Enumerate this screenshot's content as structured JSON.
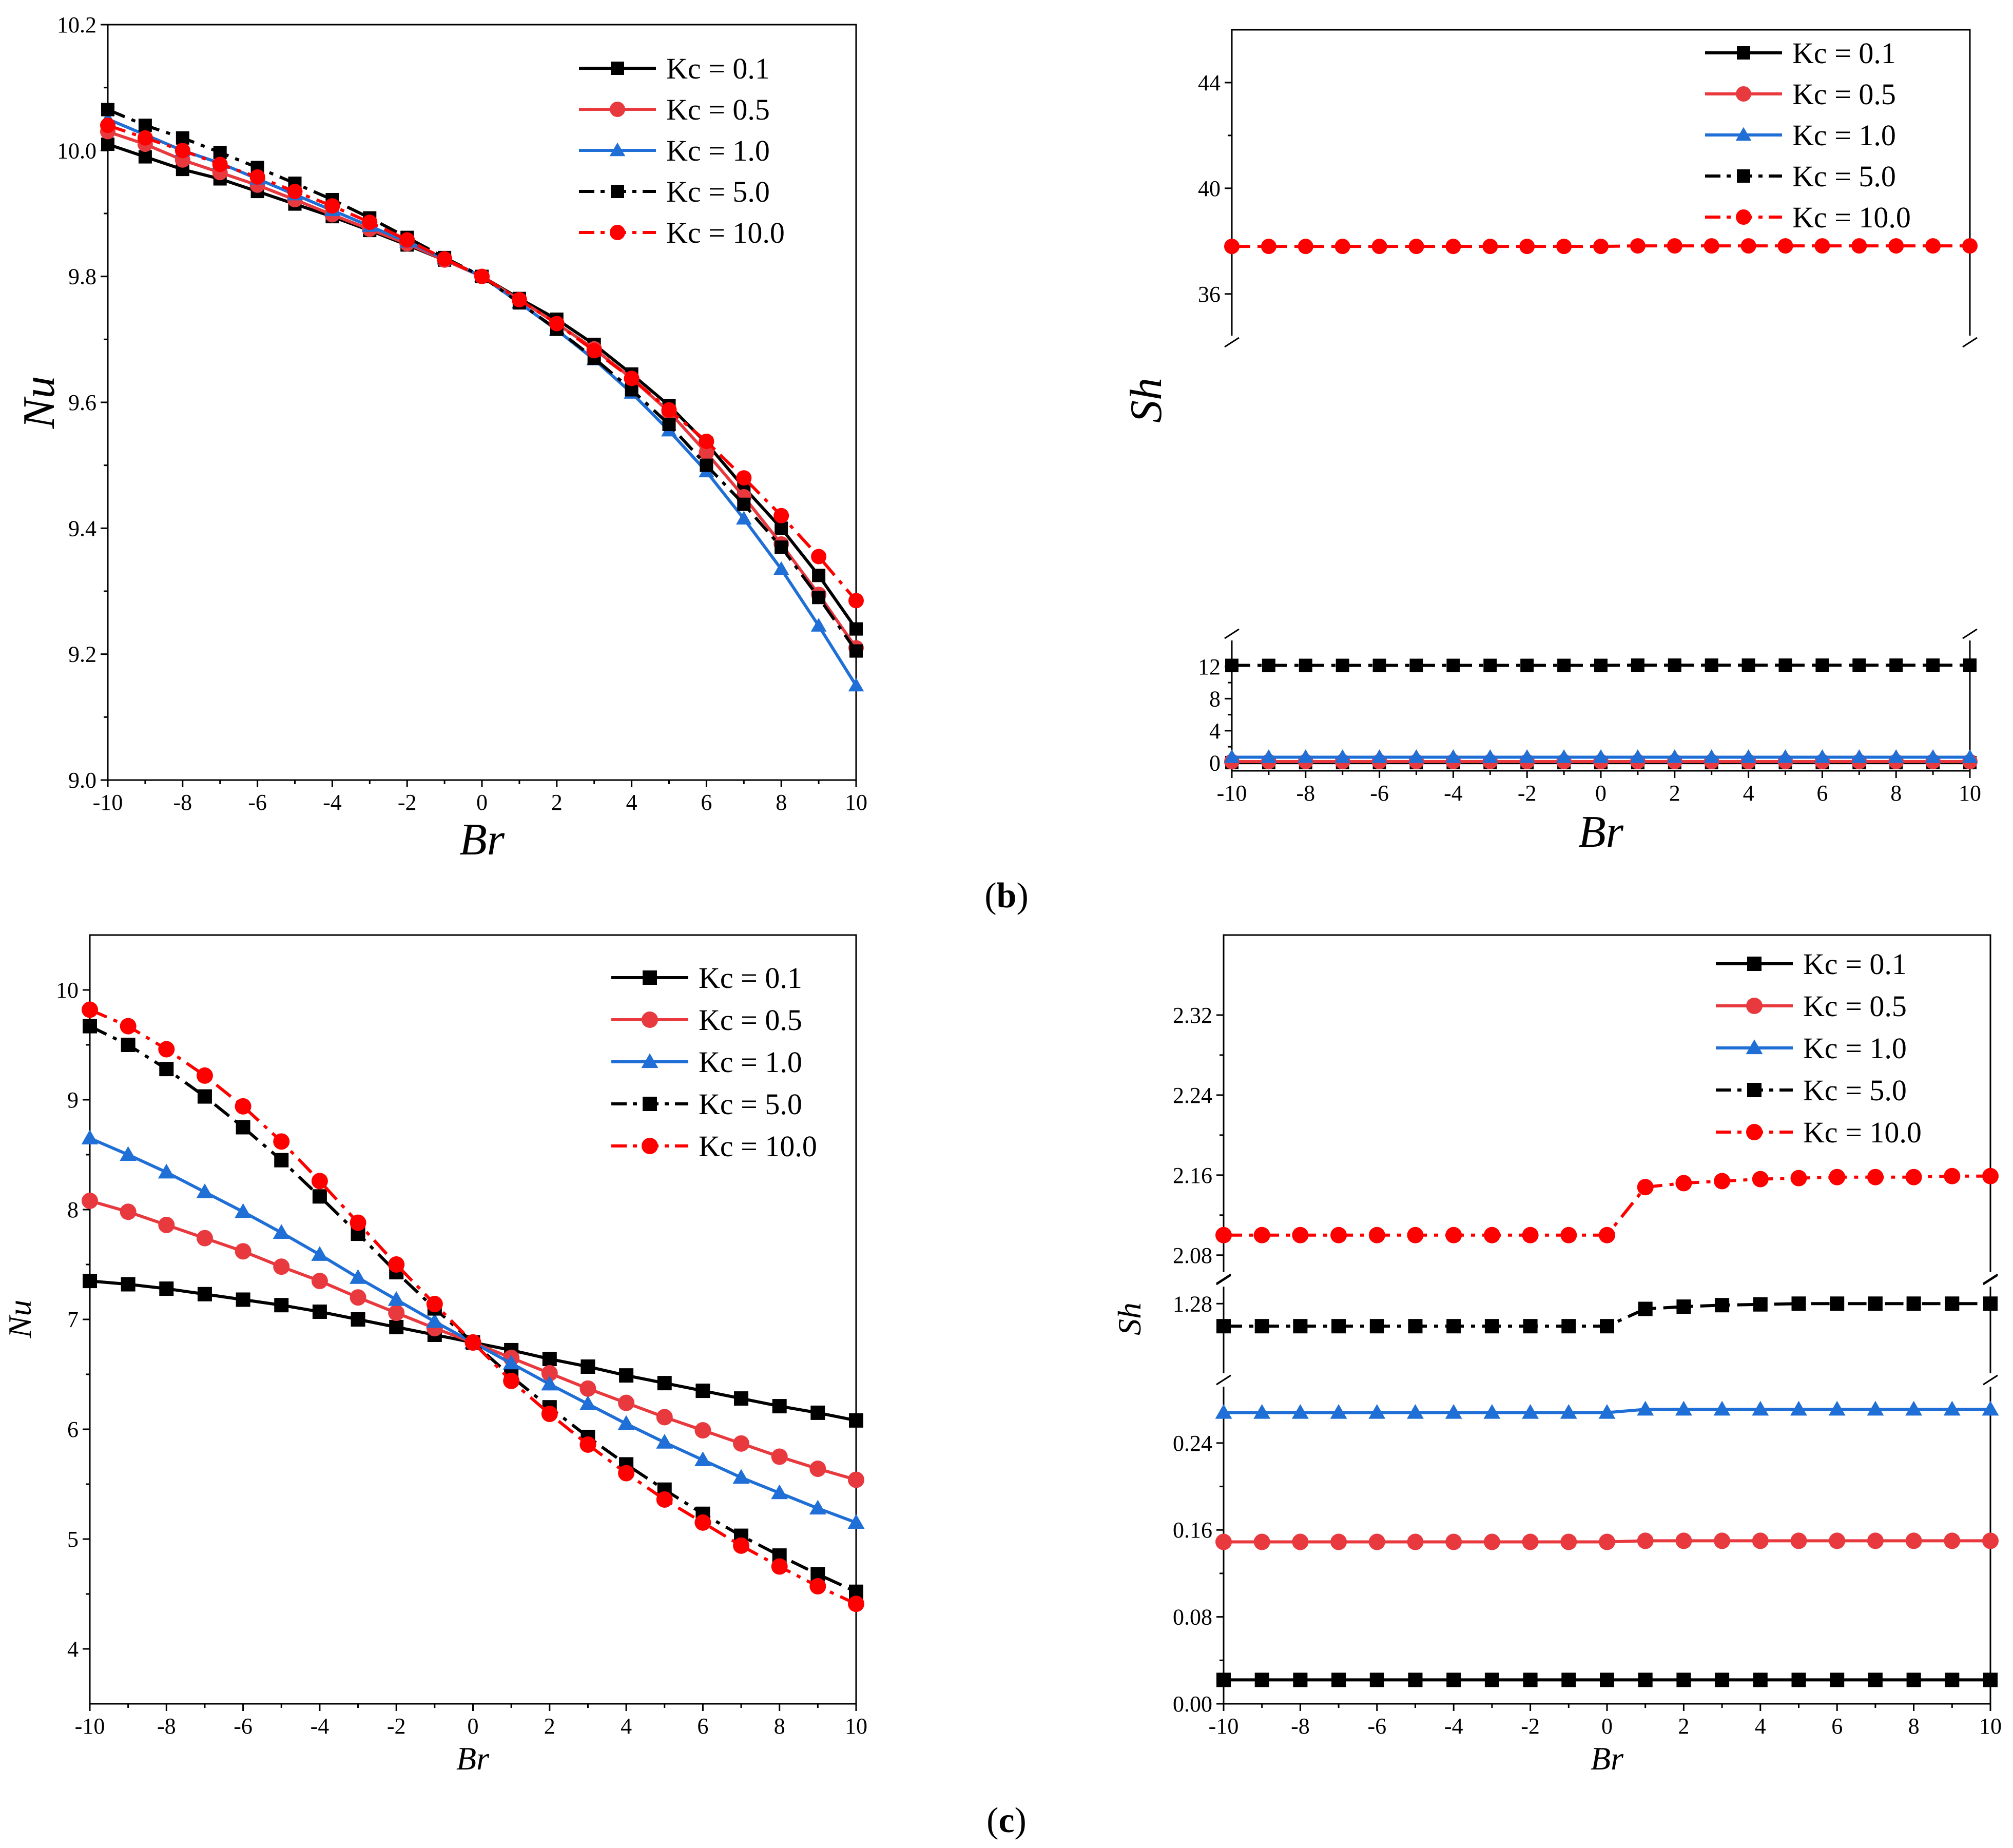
{
  "colors": {
    "black": "#000000",
    "red": "#e8393f",
    "blue": "#1f6fd6",
    "brightRed": "#ff0000"
  },
  "panel_labels": {
    "b_open": "(",
    "b": "b",
    "b_close": ")",
    "c_open": "(",
    "c": "c",
    "c_close": ")"
  },
  "chart_data": [
    {
      "id": "b-left",
      "type": "line",
      "xlabel": "Br",
      "ylabel": "Nu",
      "xlim": [
        -10,
        10
      ],
      "ylim": [
        9.0,
        10.2
      ],
      "xticks": [
        -10,
        -8,
        -6,
        -4,
        -2,
        0,
        2,
        4,
        6,
        8,
        10
      ],
      "xticklabels": [
        "-10",
        "-8",
        "-6",
        "-4",
        "-2",
        "0",
        "2",
        "4",
        "6",
        "8",
        "10"
      ],
      "yticks": [
        9.0,
        9.2,
        9.4,
        9.6,
        9.8,
        10.0,
        10.2
      ],
      "yticklabels": [
        "9.0",
        "9.2",
        "9.4",
        "9.6",
        "9.8",
        "10.0",
        "10.2"
      ],
      "legend_position": "top-right",
      "x": [
        -10,
        -9,
        -8,
        -7,
        -6,
        -5,
        -4,
        -3,
        -2,
        -1,
        0,
        1,
        2,
        3,
        4,
        5,
        6,
        7,
        8,
        9,
        10
      ],
      "series": [
        {
          "name": "Kc = 0.1",
          "color": "#000000",
          "marker": "square",
          "dash": "solid",
          "values": [
            10.01,
            9.99,
            9.97,
            9.955,
            9.935,
            9.915,
            9.895,
            9.873,
            9.85,
            9.826,
            9.8,
            9.765,
            9.732,
            9.692,
            9.645,
            9.595,
            9.535,
            9.465,
            9.4,
            9.325,
            9.24
          ]
        },
        {
          "name": "Kc = 0.5",
          "color": "#e8393f",
          "marker": "circle",
          "dash": "solid",
          "values": [
            10.03,
            10.01,
            9.985,
            9.965,
            9.945,
            9.922,
            9.898,
            9.875,
            9.852,
            9.826,
            9.8,
            9.763,
            9.725,
            9.685,
            9.638,
            9.585,
            9.52,
            9.45,
            9.375,
            9.295,
            9.21
          ]
        },
        {
          "name": "Kc = 1.0",
          "color": "#1f6fd6",
          "marker": "triangle",
          "dash": "solid",
          "values": [
            10.05,
            10.025,
            10.0,
            9.98,
            9.955,
            9.93,
            9.905,
            9.88,
            9.855,
            9.828,
            9.8,
            9.758,
            9.715,
            9.668,
            9.615,
            9.555,
            9.49,
            9.415,
            9.335,
            9.245,
            9.15
          ]
        },
        {
          "name": "Kc = 5.0",
          "color": "#000000",
          "marker": "square",
          "dash": "dashdot",
          "values": [
            10.065,
            10.04,
            10.02,
            9.997,
            9.973,
            9.948,
            9.922,
            9.893,
            9.862,
            9.83,
            9.8,
            9.758,
            9.716,
            9.67,
            9.62,
            9.565,
            9.5,
            9.438,
            9.37,
            9.29,
            9.205
          ]
        },
        {
          "name": "Kc = 10.0",
          "color": "#ff0000",
          "marker": "circle",
          "dash": "dashdot",
          "values": [
            10.04,
            10.02,
            10.0,
            9.978,
            9.958,
            9.935,
            9.912,
            9.886,
            9.858,
            9.828,
            9.8,
            9.763,
            9.725,
            9.682,
            9.638,
            9.588,
            9.538,
            9.48,
            9.42,
            9.355,
            9.285
          ]
        }
      ]
    },
    {
      "id": "b-right",
      "type": "line",
      "xlabel": "Br",
      "ylabel": "Sh",
      "xlim": [
        -10,
        10
      ],
      "axis_break": true,
      "segments": [
        {
          "ylim": [
            -1,
            15
          ],
          "yticks": [
            0,
            4,
            8,
            12
          ],
          "yticklabels": [
            "0",
            "4",
            "8",
            "12"
          ]
        },
        {
          "ylim": [
            34.5,
            46
          ],
          "yticks": [
            36,
            40,
            44
          ],
          "yticklabels": [
            "36",
            "40",
            "44"
          ]
        }
      ],
      "xticks": [
        -10,
        -8,
        -6,
        -4,
        -2,
        0,
        2,
        4,
        6,
        8,
        10
      ],
      "xticklabels": [
        "-10",
        "-8",
        "-6",
        "-4",
        "-2",
        "0",
        "2",
        "4",
        "6",
        "8",
        "10"
      ],
      "legend_position": "top-right",
      "x": [
        -10,
        -9,
        -8,
        -7,
        -6,
        -5,
        -4,
        -3,
        -2,
        -1,
        0,
        1,
        2,
        3,
        4,
        5,
        6,
        7,
        8,
        9,
        10
      ],
      "series": [
        {
          "name": "Kc = 0.1",
          "color": "#000000",
          "marker": "square",
          "dash": "solid",
          "segment": 0,
          "values": [
            0.02,
            0.02,
            0.02,
            0.02,
            0.02,
            0.02,
            0.02,
            0.02,
            0.02,
            0.02,
            0.02,
            0.02,
            0.02,
            0.02,
            0.02,
            0.02,
            0.02,
            0.02,
            0.02,
            0.02,
            0.02
          ]
        },
        {
          "name": "Kc = 0.5",
          "color": "#e8393f",
          "marker": "circle",
          "dash": "solid",
          "segment": 0,
          "values": [
            0.15,
            0.15,
            0.15,
            0.15,
            0.15,
            0.15,
            0.15,
            0.15,
            0.15,
            0.15,
            0.15,
            0.15,
            0.15,
            0.15,
            0.15,
            0.15,
            0.15,
            0.15,
            0.15,
            0.15,
            0.15
          ]
        },
        {
          "name": "Kc = 1.0",
          "color": "#1f6fd6",
          "marker": "triangle",
          "dash": "solid",
          "segment": 0,
          "values": [
            0.7,
            0.7,
            0.7,
            0.7,
            0.7,
            0.7,
            0.7,
            0.7,
            0.7,
            0.7,
            0.7,
            0.7,
            0.7,
            0.7,
            0.7,
            0.7,
            0.7,
            0.7,
            0.7,
            0.7,
            0.7
          ]
        },
        {
          "name": "Kc = 5.0",
          "color": "#000000",
          "marker": "square",
          "dash": "dashdot",
          "segment": 0,
          "values": [
            12.15,
            12.15,
            12.15,
            12.15,
            12.15,
            12.15,
            12.15,
            12.15,
            12.15,
            12.15,
            12.15,
            12.18,
            12.18,
            12.18,
            12.18,
            12.18,
            12.18,
            12.18,
            12.18,
            12.18,
            12.18
          ]
        },
        {
          "name": "Kc = 10.0",
          "color": "#ff0000",
          "marker": "circle",
          "dash": "dashdot",
          "segment": 1,
          "values": [
            37.8,
            37.8,
            37.8,
            37.8,
            37.8,
            37.8,
            37.8,
            37.8,
            37.8,
            37.8,
            37.8,
            37.82,
            37.82,
            37.82,
            37.82,
            37.82,
            37.82,
            37.82,
            37.82,
            37.82,
            37.82
          ]
        }
      ]
    },
    {
      "id": "c-left",
      "type": "line",
      "xlabel": "Br",
      "ylabel": "Nu",
      "xlim": [
        -10,
        10
      ],
      "ylim": [
        3.5,
        10.5
      ],
      "xticks": [
        -10,
        -8,
        -6,
        -4,
        -2,
        0,
        2,
        4,
        6,
        8,
        10
      ],
      "xticklabels": [
        "-10",
        "-8",
        "-6",
        "-4",
        "-2",
        "0",
        "2",
        "4",
        "6",
        "8",
        "10"
      ],
      "yticks": [
        4,
        5,
        6,
        7,
        8,
        9,
        10
      ],
      "yticklabels": [
        "4",
        "5",
        "6",
        "7",
        "8",
        "9",
        "10"
      ],
      "legend_position": "top-right",
      "x": [
        -10,
        -9,
        -8,
        -7,
        -6,
        -5,
        -4,
        -3,
        -2,
        -1,
        0,
        1,
        2,
        3,
        4,
        5,
        6,
        7,
        8,
        9,
        10
      ],
      "series": [
        {
          "name": "Kc = 0.1",
          "color": "#000000",
          "marker": "square",
          "dash": "solid",
          "values": [
            7.35,
            7.32,
            7.28,
            7.23,
            7.18,
            7.13,
            7.07,
            7.0,
            6.93,
            6.86,
            6.79,
            6.72,
            6.64,
            6.57,
            6.49,
            6.42,
            6.35,
            6.28,
            6.21,
            6.15,
            6.08
          ]
        },
        {
          "name": "Kc = 0.5",
          "color": "#e8393f",
          "marker": "circle",
          "dash": "solid",
          "values": [
            8.08,
            7.98,
            7.86,
            7.74,
            7.62,
            7.48,
            7.35,
            7.2,
            7.06,
            6.92,
            6.79,
            6.65,
            6.51,
            6.37,
            6.24,
            6.11,
            5.99,
            5.87,
            5.75,
            5.64,
            5.54
          ]
        },
        {
          "name": "Kc = 1.0",
          "color": "#1f6fd6",
          "marker": "triangle",
          "dash": "solid",
          "values": [
            8.65,
            8.5,
            8.34,
            8.16,
            7.98,
            7.79,
            7.59,
            7.38,
            7.18,
            6.98,
            6.79,
            6.6,
            6.41,
            6.23,
            6.05,
            5.88,
            5.72,
            5.56,
            5.42,
            5.28,
            5.15
          ]
        },
        {
          "name": "Kc = 5.0",
          "color": "#000000",
          "marker": "square",
          "dash": "dashdot",
          "values": [
            9.67,
            9.5,
            9.28,
            9.03,
            8.75,
            8.45,
            8.12,
            7.78,
            7.43,
            7.1,
            6.79,
            6.48,
            6.2,
            5.93,
            5.68,
            5.45,
            5.23,
            5.03,
            4.85,
            4.68,
            4.52
          ]
        },
        {
          "name": "Kc = 10.0",
          "color": "#ff0000",
          "marker": "circle",
          "dash": "dashdot",
          "values": [
            9.82,
            9.67,
            9.46,
            9.22,
            8.94,
            8.62,
            8.26,
            7.88,
            7.5,
            7.14,
            6.79,
            6.44,
            6.14,
            5.86,
            5.6,
            5.36,
            5.15,
            4.94,
            4.75,
            4.57,
            4.41
          ]
        }
      ]
    },
    {
      "id": "c-right",
      "type": "line",
      "xlabel": "Br",
      "ylabel": "Sh",
      "xlim": [
        -10,
        10
      ],
      "axis_break": true,
      "segments": [
        {
          "ylim": [
            0.0,
            0.29
          ],
          "yticks": [
            0.0,
            0.08,
            0.16,
            0.24
          ],
          "yticklabels": [
            "0.00",
            "0.08",
            "0.16",
            "0.24"
          ]
        },
        {
          "ylim": [
            1.19,
            1.3
          ],
          "yticks": [
            1.28
          ],
          "yticklabels": [
            "1.28"
          ]
        },
        {
          "ylim": [
            2.065,
            2.4
          ],
          "yticks": [
            2.08,
            2.16,
            2.24,
            2.32
          ],
          "yticklabels": [
            "2.08",
            "2.16",
            "2.24",
            "2.32"
          ]
        }
      ],
      "xticks": [
        -10,
        -8,
        -6,
        -4,
        -2,
        0,
        2,
        4,
        6,
        8,
        10
      ],
      "xticklabels": [
        "-10",
        "-8",
        "-6",
        "-4",
        "-2",
        "0",
        "2",
        "4",
        "6",
        "8",
        "10"
      ],
      "legend_position": "top-right",
      "x": [
        -10,
        -9,
        -8,
        -7,
        -6,
        -5,
        -4,
        -3,
        -2,
        -1,
        0,
        1,
        2,
        3,
        4,
        5,
        6,
        7,
        8,
        9,
        10
      ],
      "series": [
        {
          "name": "Kc = 0.1",
          "color": "#000000",
          "marker": "square",
          "dash": "solid",
          "segment": 0,
          "values": [
            0.022,
            0.022,
            0.022,
            0.022,
            0.022,
            0.022,
            0.022,
            0.022,
            0.022,
            0.022,
            0.022,
            0.022,
            0.022,
            0.022,
            0.022,
            0.022,
            0.022,
            0.022,
            0.022,
            0.022,
            0.022
          ]
        },
        {
          "name": "Kc = 0.5",
          "color": "#e8393f",
          "marker": "circle",
          "dash": "solid",
          "segment": 0,
          "values": [
            0.149,
            0.149,
            0.149,
            0.149,
            0.149,
            0.149,
            0.149,
            0.149,
            0.149,
            0.149,
            0.149,
            0.15,
            0.15,
            0.15,
            0.15,
            0.15,
            0.15,
            0.15,
            0.15,
            0.15,
            0.15
          ]
        },
        {
          "name": "Kc = 1.0",
          "color": "#1f6fd6",
          "marker": "triangle",
          "dash": "solid",
          "segment": 0,
          "values": [
            0.268,
            0.268,
            0.268,
            0.268,
            0.268,
            0.268,
            0.268,
            0.268,
            0.268,
            0.268,
            0.268,
            0.271,
            0.271,
            0.271,
            0.271,
            0.271,
            0.271,
            0.271,
            0.271,
            0.271,
            0.271
          ]
        },
        {
          "name": "Kc = 5.0",
          "color": "#000000",
          "marker": "square",
          "dash": "dashdot",
          "segment": 1,
          "values": [
            1.25,
            1.25,
            1.25,
            1.25,
            1.25,
            1.25,
            1.25,
            1.25,
            1.25,
            1.25,
            1.25,
            1.273,
            1.276,
            1.278,
            1.279,
            1.28,
            1.28,
            1.28,
            1.28,
            1.28,
            1.28
          ]
        },
        {
          "name": "Kc = 10.0",
          "color": "#ff0000",
          "marker": "circle",
          "dash": "dashdot",
          "segment": 2,
          "values": [
            2.1,
            2.1,
            2.1,
            2.1,
            2.1,
            2.1,
            2.1,
            2.1,
            2.1,
            2.1,
            2.1,
            2.148,
            2.152,
            2.154,
            2.156,
            2.157,
            2.158,
            2.158,
            2.158,
            2.159,
            2.159
          ]
        }
      ]
    }
  ]
}
